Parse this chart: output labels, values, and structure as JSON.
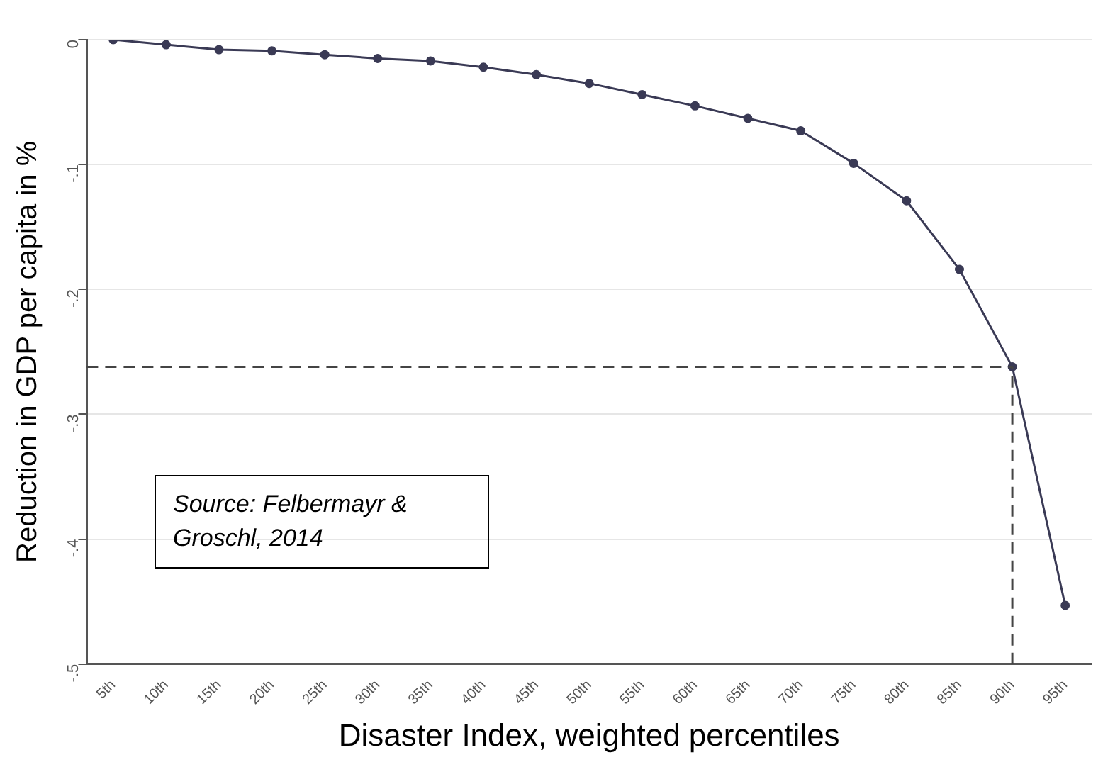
{
  "chart_data": {
    "type": "line",
    "xlabel": "Disaster Index, weighted percentiles",
    "ylabel": "Reduction in GDP per capita in %",
    "categories": [
      "5th",
      "10th",
      "15th",
      "20th",
      "25th",
      "30th",
      "35th",
      "40th",
      "45th",
      "50th",
      "55th",
      "60th",
      "65th",
      "70th",
      "75th",
      "80th",
      "85th",
      "90th",
      "95th"
    ],
    "series": [
      {
        "color": "#3a3a55",
        "values": [
          0,
          -0.004,
          -0.008,
          -0.009,
          -0.012,
          -0.015,
          -0.017,
          -0.022,
          -0.028,
          -0.035,
          -0.044,
          -0.053,
          -0.063,
          -0.073,
          -0.099,
          -0.129,
          -0.184,
          -0.262,
          -0.453
        ]
      }
    ],
    "ylim": [
      -0.5,
      0
    ],
    "yticks": [
      {
        "value": -0.5,
        "label": "-.5"
      },
      {
        "value": -0.4,
        "label": "-.4"
      },
      {
        "value": -0.3,
        "label": "-.3"
      },
      {
        "value": -0.2,
        "label": "-.2"
      },
      {
        "value": -0.1,
        "label": "-.1"
      },
      0
    ],
    "grid": "y",
    "legend": false,
    "marker": "circle",
    "line_style": "solid",
    "ref_lines": [
      {
        "axis": "y",
        "value": -0.262,
        "color": "#444444",
        "line_style": "dashed"
      },
      {
        "axis": "x",
        "value": "90th",
        "color": "#444444",
        "line_style": "dashed"
      }
    ],
    "annotations": [
      "Source: Felbermayr & Groschl, 2014"
    ]
  }
}
